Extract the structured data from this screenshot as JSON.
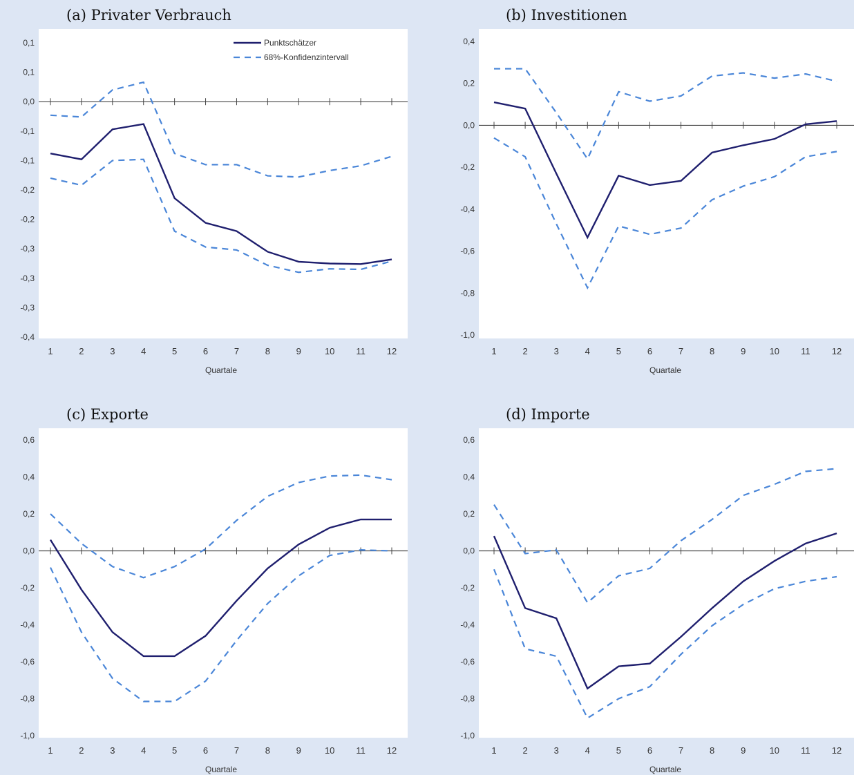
{
  "colors": {
    "point": "#1f1f6e",
    "ci": "#4a86d8",
    "axis": "#444444",
    "background": "#dde6f4",
    "plot": "#ffffff"
  },
  "legend": {
    "point_label": "Punktschätzer",
    "ci_label": "68%-Konfidenzintervall"
  },
  "chart_data": [
    {
      "type": "line",
      "title": "(a) Privater Verbrauch",
      "xlabel": "Quartale",
      "ylabel": "",
      "x": [
        1,
        2,
        3,
        4,
        5,
        6,
        7,
        8,
        9,
        10,
        11,
        12
      ],
      "ylim": [
        -0.4,
        0.1
      ],
      "yticks": [
        0.1,
        0.05,
        0,
        -0.05,
        -0.1,
        -0.15,
        -0.2,
        -0.25,
        -0.3,
        -0.35,
        -0.4
      ],
      "ytick_labels": [
        "0,1",
        "0,1",
        "0,0",
        "-0,1",
        "-0,1",
        "-0,2",
        "-0,2",
        "-0,3",
        "-0,3",
        "-0,3",
        "-0,4"
      ],
      "legend": "top-right",
      "series": [
        {
          "name": "Punktschätzer",
          "style": "solid",
          "values": [
            -0.088,
            -0.098,
            -0.047,
            -0.038,
            -0.164,
            -0.206,
            -0.22,
            -0.255,
            -0.272,
            -0.275,
            -0.276,
            -0.268
          ]
        },
        {
          "name": "68%-Konfidenzintervall",
          "style": "dashed",
          "values": [
            -0.023,
            -0.026,
            0.02,
            0.033,
            -0.088,
            -0.107,
            -0.107,
            -0.126,
            -0.128,
            -0.117,
            -0.109,
            -0.093
          ]
        },
        {
          "name": "",
          "style": "dashed",
          "values": [
            -0.13,
            -0.142,
            -0.1,
            -0.098,
            -0.22,
            -0.247,
            -0.252,
            -0.278,
            -0.29,
            -0.284,
            -0.285,
            -0.271
          ]
        }
      ]
    },
    {
      "type": "line",
      "title": "(b) Investitionen",
      "xlabel": "Quartale",
      "ylabel": "",
      "x": [
        1,
        2,
        3,
        4,
        5,
        6,
        7,
        8,
        9,
        10,
        11,
        12
      ],
      "ylim": [
        -1.0,
        0.4
      ],
      "yticks": [
        0.4,
        0.2,
        0,
        -0.2,
        -0.4,
        -0.6,
        -0.8,
        -1.0
      ],
      "ytick_labels": [
        "0,4",
        "0,2",
        "0,0",
        "-0,2",
        "-0,4",
        "-0,6",
        "-0,8",
        "-1,0"
      ],
      "series": [
        {
          "name": "Punktschätzer",
          "style": "solid",
          "values": [
            0.11,
            0.08,
            -0.23,
            -0.535,
            -0.24,
            -0.285,
            -0.265,
            -0.13,
            -0.095,
            -0.065,
            0.005,
            0.02
          ]
        },
        {
          "name": "68%-Konfidenzintervall",
          "style": "dashed",
          "values": [
            0.27,
            0.27,
            0.06,
            -0.16,
            0.16,
            0.115,
            0.14,
            0.235,
            0.25,
            0.225,
            0.245,
            0.21
          ]
        },
        {
          "name": "",
          "style": "dashed",
          "values": [
            -0.06,
            -0.15,
            -0.47,
            -0.775,
            -0.48,
            -0.52,
            -0.49,
            -0.355,
            -0.29,
            -0.245,
            -0.15,
            -0.125
          ]
        }
      ]
    },
    {
      "type": "line",
      "title": "(c) Exporte",
      "xlabel": "Quartale",
      "ylabel": "",
      "x": [
        1,
        2,
        3,
        4,
        5,
        6,
        7,
        8,
        9,
        10,
        11,
        12
      ],
      "ylim": [
        -1.0,
        0.6
      ],
      "yticks": [
        0.6,
        0.4,
        0.2,
        0,
        -0.2,
        -0.4,
        -0.6,
        -0.8,
        -1.0
      ],
      "ytick_labels": [
        "0,6",
        "0,4",
        "0,2",
        "0,0",
        "-0,2",
        "-0,4",
        "-0,6",
        "-0,8",
        "-1,0"
      ],
      "series": [
        {
          "name": "Punktschätzer",
          "style": "solid",
          "values": [
            0.06,
            -0.21,
            -0.44,
            -0.57,
            -0.57,
            -0.46,
            -0.27,
            -0.095,
            0.035,
            0.125,
            0.17,
            0.17
          ]
        },
        {
          "name": "68%-Konfidenzintervall",
          "style": "dashed",
          "values": [
            0.2,
            0.04,
            -0.085,
            -0.145,
            -0.085,
            0.01,
            0.165,
            0.295,
            0.37,
            0.405,
            0.41,
            0.385
          ]
        },
        {
          "name": "",
          "style": "dashed",
          "values": [
            -0.09,
            -0.44,
            -0.69,
            -0.815,
            -0.815,
            -0.705,
            -0.485,
            -0.285,
            -0.135,
            -0.025,
            0.005,
            0.0
          ]
        }
      ]
    },
    {
      "type": "line",
      "title": "(d) Importe",
      "xlabel": "Quartale",
      "ylabel": "",
      "x": [
        1,
        2,
        3,
        4,
        5,
        6,
        7,
        8,
        9,
        10,
        11,
        12
      ],
      "ylim": [
        -1.0,
        0.6
      ],
      "yticks": [
        0.6,
        0.4,
        0.2,
        0,
        -0.2,
        -0.4,
        -0.6,
        -0.8,
        -1.0
      ],
      "ytick_labels": [
        "0,6",
        "0,4",
        "0,2",
        "0,0",
        "-0,2",
        "-0,4",
        "-0,6",
        "-0,8",
        "-1,0"
      ],
      "series": [
        {
          "name": "Punktschätzer",
          "style": "solid",
          "values": [
            0.08,
            -0.31,
            -0.365,
            -0.745,
            -0.625,
            -0.61,
            -0.465,
            -0.31,
            -0.165,
            -0.055,
            0.04,
            0.095
          ]
        },
        {
          "name": "68%-Konfidenzintervall",
          "style": "dashed",
          "values": [
            0.25,
            -0.015,
            0.005,
            -0.28,
            -0.135,
            -0.095,
            0.055,
            0.17,
            0.3,
            0.36,
            0.43,
            0.445
          ]
        },
        {
          "name": "",
          "style": "dashed",
          "values": [
            -0.1,
            -0.53,
            -0.57,
            -0.905,
            -0.8,
            -0.735,
            -0.56,
            -0.405,
            -0.29,
            -0.205,
            -0.165,
            -0.14
          ]
        }
      ]
    }
  ]
}
